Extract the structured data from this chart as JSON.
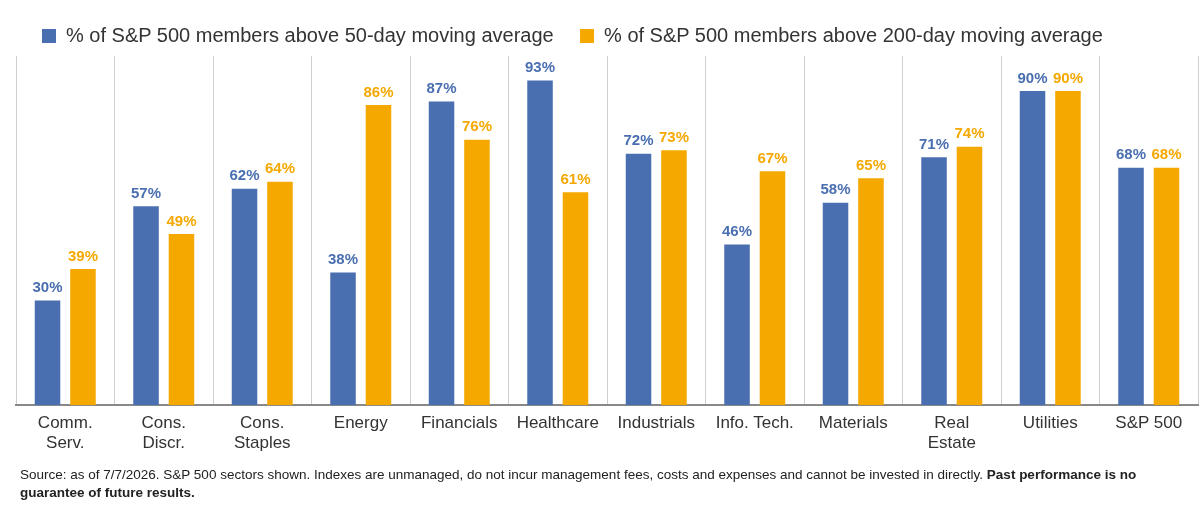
{
  "chart_data": {
    "type": "bar",
    "categories": [
      "Comm. Serv.",
      "Cons. Discr.",
      "Cons. Staples",
      "Energy",
      "Financials",
      "Healthcare",
      "Industrials",
      "Info. Tech.",
      "Materials",
      "Real Estate",
      "Utilities",
      "S&P 500"
    ],
    "series": [
      {
        "name": "% of S&P 500 members above 50-day moving average",
        "color": "#4a6fb0",
        "values": [
          30,
          57,
          62,
          38,
          87,
          93,
          72,
          46,
          58,
          71,
          90,
          68
        ],
        "value_labels": [
          "30%",
          "57%",
          "62%",
          "38%",
          "87%",
          "93%",
          "72%",
          "46%",
          "58%",
          "71%",
          "90%",
          "68%"
        ]
      },
      {
        "name": "% of S&P 500 members above 200-day moving average",
        "color": "#f5a800",
        "values": [
          39,
          49,
          64,
          86,
          76,
          61,
          73,
          67,
          65,
          74,
          90,
          68
        ],
        "value_labels": [
          "39%",
          "49%",
          "64%",
          "86%",
          "76%",
          "61%",
          "73%",
          "67%",
          "65%",
          "74%",
          "90%",
          "68%"
        ]
      }
    ],
    "ylim": [
      0,
      100
    ],
    "tick_labels": "x",
    "grid": "x",
    "legend": "top left",
    "annotations": [
      "Source: as of 7/7/2026. S&P 500 sectors shown. Indexes are unmanaged, do not incur management fees, costs and expenses and cannot be invested in directly.",
      "Past performance is no guarantee of future results."
    ]
  }
}
